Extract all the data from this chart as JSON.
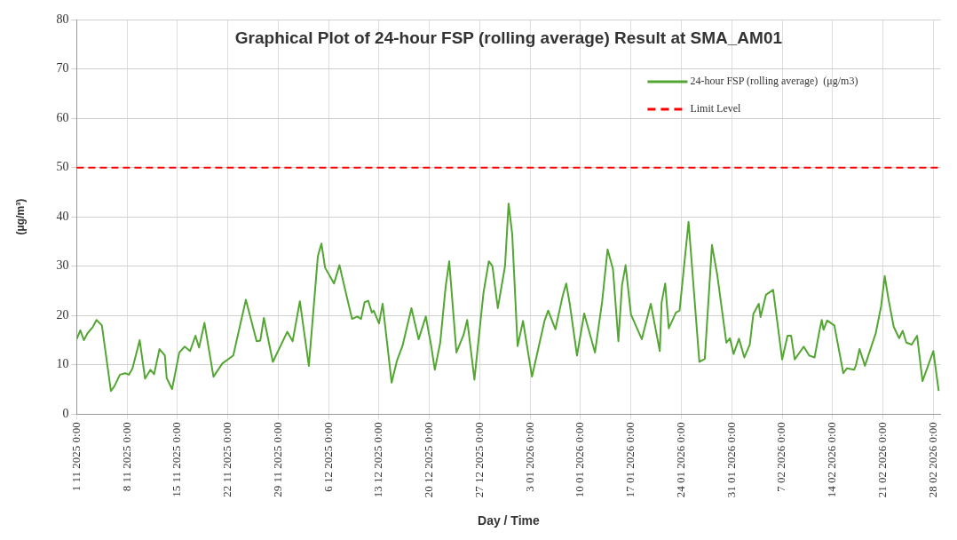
{
  "chart_data": {
    "type": "line",
    "title": "Graphical Plot of 24-hour FSP (rolling average) Result at SMA_AM01",
    "xlabel": "Day / Time",
    "ylabel": "(μg/m³)",
    "xlim": [
      "2025-11-01",
      "2026-03-01"
    ],
    "xticks": [
      {
        "value": "2025-11-01",
        "label": "1 11 2025 0:00"
      },
      {
        "value": "2025-11-08",
        "label": "8 11 2025 0:00"
      },
      {
        "value": "2025-11-15",
        "label": "15 11 2025 0:00"
      },
      {
        "value": "2025-11-22",
        "label": "22 11 2025 0:00"
      },
      {
        "value": "2025-11-29",
        "label": "29 11 2025 0:00"
      },
      {
        "value": "2025-12-06",
        "label": "6 12 2025 0:00"
      },
      {
        "value": "2025-12-13",
        "label": "13 12 2025 0:00"
      },
      {
        "value": "2025-12-20",
        "label": "20 12 2025 0:00"
      },
      {
        "value": "2025-12-27",
        "label": "27 12 2025 0:00"
      },
      {
        "value": "2026-01-03",
        "label": "3 01 2026 0:00"
      },
      {
        "value": "2026-01-10",
        "label": "10 01 2026 0:00"
      },
      {
        "value": "2026-01-17",
        "label": "17 01 2026 0:00"
      },
      {
        "value": "2026-01-24",
        "label": "24 01 2026 0:00"
      },
      {
        "value": "2026-01-31",
        "label": "31 01 2026 0:00"
      },
      {
        "value": "2026-02-07",
        "label": "7 02 2026 0:00"
      },
      {
        "value": "2026-02-14",
        "label": "14 02 2026 0:00"
      },
      {
        "value": "2026-02-21",
        "label": "21 02 2026 0:00"
      },
      {
        "value": "2026-02-28",
        "label": "28 02 2026 0:00"
      }
    ],
    "ylim": [
      0,
      80
    ],
    "yticks": [
      0,
      10,
      20,
      30,
      40,
      50,
      60,
      70,
      80
    ],
    "grid": true,
    "legend": "top right",
    "line_style": "solid",
    "marker": "none",
    "x": [
      "2025-11-01",
      "2025-11-01T12:00",
      "2025-11-02",
      "2025-11-02T12:00",
      "2025-11-03T06:00",
      "2025-11-03T18:00",
      "2025-11-04T12:00",
      "2025-11-05T18:00",
      "2025-11-06T06:00",
      "2025-11-07",
      "2025-11-07T18:00",
      "2025-11-08T06:00",
      "2025-11-08T18:00",
      "2025-11-09T18:00",
      "2025-11-10T12:00",
      "2025-11-11T06:00",
      "2025-11-11T18:00",
      "2025-11-12T12:00",
      "2025-11-13T06:00",
      "2025-11-13T12:00",
      "2025-11-14T06:00",
      "2025-11-15T06:00",
      "2025-11-16",
      "2025-11-16T18:00",
      "2025-11-17T12:00",
      "2025-11-18",
      "2025-11-18T18:00",
      "2025-11-20",
      "2025-11-21T06:00",
      "2025-11-22T18:00",
      "2025-11-24T12:00",
      "2025-11-26",
      "2025-11-26T12:00",
      "2025-11-27",
      "2025-11-28T06:00",
      "2025-11-30T06:00",
      "2025-12-01",
      "2025-12-02",
      "2025-12-03T06:00",
      "2025-12-04T12:00",
      "2025-12-05",
      "2025-12-05T12:00",
      "2025-12-06T18:00",
      "2025-12-07T12:00",
      "2025-12-08T06:00",
      "2025-12-09T06:00",
      "2025-12-10",
      "2025-12-10T12:00",
      "2025-12-11",
      "2025-12-11T12:00",
      "2025-12-12",
      "2025-12-12T06:00",
      "2025-12-13",
      "2025-12-13T12:00",
      "2025-12-14T18:00",
      "2025-12-15T12:00",
      "2025-12-16T06:00",
      "2025-12-17T12:00",
      "2025-12-18T12:00",
      "2025-12-19T12:00",
      "2025-12-20T06:00",
      "2025-12-20T18:00",
      "2025-12-21T12:00",
      "2025-12-22T06:00",
      "2025-12-22T18:00",
      "2025-12-23T18:00",
      "2025-12-24T18:00",
      "2025-12-25T06:00",
      "2025-12-26T06:00",
      "2025-12-27T12:00",
      "2025-12-28T06:00",
      "2025-12-28T18:00",
      "2025-12-29T12:00",
      "2025-12-30T12:00",
      "2025-12-31",
      "2025-12-31T12:00",
      "2026-01-01T06:00",
      "2026-01-02",
      "2026-01-03T06:00",
      "2026-01-04",
      "2026-01-05",
      "2026-01-05T12:00",
      "2026-01-06T12:00",
      "2026-01-07T12:00",
      "2026-01-08",
      "2026-01-08T12:00",
      "2026-01-09T12:00",
      "2026-01-10T12:00",
      "2026-01-12",
      "2026-01-13",
      "2026-01-13T18:00",
      "2026-01-14T12:00",
      "2026-01-15T06:00",
      "2026-01-15T18:00",
      "2026-01-16T06:00",
      "2026-01-17",
      "2026-01-18T12:00",
      "2026-01-19T18:00",
      "2026-01-21",
      "2026-01-21T06:00",
      "2026-01-21T18:00",
      "2026-01-22T06:00",
      "2026-01-23T06:00",
      "2026-01-23T18:00",
      "2026-01-25",
      "2026-01-26T12:00",
      "2026-01-27T06:00",
      "2026-01-28T06:00",
      "2026-01-29",
      "2026-01-30T06:00",
      "2026-01-30T18:00",
      "2026-01-31T06:00",
      "2026-02-01",
      "2026-02-01T18:00",
      "2026-02-02T12:00",
      "2026-02-03",
      "2026-02-03T18:00",
      "2026-02-04",
      "2026-02-04T18:00",
      "2026-02-05T18:00",
      "2026-02-07",
      "2026-02-07T18:00",
      "2026-02-08T06:00",
      "2026-02-08T18:00",
      "2026-02-10",
      "2026-02-10T18:00",
      "2026-02-11T12:00",
      "2026-02-12T06:00",
      "2026-02-12T12:00",
      "2026-02-12T18:00",
      "2026-02-13T06:00",
      "2026-02-14T06:00",
      "2026-02-15T12:00",
      "2026-02-16",
      "2026-02-17",
      "2026-02-17T06:00",
      "2026-02-17T18:00",
      "2026-02-18T12:00",
      "2026-02-20",
      "2026-02-20T18:00",
      "2026-02-21T06:00",
      "2026-02-21T18:00",
      "2026-02-22T12:00",
      "2026-02-23T06:00",
      "2026-02-23T18:00",
      "2026-02-24T06:00",
      "2026-02-25",
      "2026-02-25T18:00",
      "2026-02-26T12:00",
      "2026-02-28",
      "2026-02-28T18:00"
    ],
    "series": [
      {
        "name": "24-hour FSP (rolling average)  (μg/m3)",
        "color": "#53a632",
        "values": [
          15.2,
          17.0,
          15.0,
          16.4,
          17.7,
          19.1,
          18.0,
          4.7,
          5.7,
          8.0,
          8.3,
          8.0,
          9.3,
          15.0,
          7.2,
          9.0,
          8.1,
          13.2,
          11.9,
          7.3,
          5.1,
          12.5,
          13.7,
          12.8,
          15.9,
          13.5,
          18.5,
          7.6,
          10.3,
          11.9,
          23.2,
          14.8,
          14.9,
          19.5,
          10.6,
          16.7,
          14.8,
          22.9,
          9.8,
          32.0,
          34.6,
          29.7,
          26.5,
          30.2,
          25.5,
          19.3,
          19.8,
          19.3,
          22.7,
          23.0,
          20.6,
          21.0,
          18.4,
          22.4,
          6.4,
          10.9,
          13.8,
          21.5,
          15.2,
          19.8,
          13.8,
          9.0,
          14.5,
          25.8,
          31.0,
          12.5,
          16.1,
          19.1,
          7.0,
          24.5,
          31.0,
          30.0,
          21.5,
          30.0,
          42.7,
          36.5,
          13.8,
          18.9,
          7.6,
          12.5,
          19.0,
          21.0,
          17.2,
          23.9,
          26.5,
          22.3,
          11.9,
          20.4,
          12.5,
          22.9,
          33.4,
          29.4,
          14.8,
          26.1,
          30.2,
          20.2,
          15.2,
          22.4,
          12.8,
          22.6,
          26.5,
          17.4,
          20.6,
          21.0,
          39.0,
          10.6,
          11.2,
          34.3,
          28.1,
          14.5,
          15.4,
          12.2,
          15.3,
          11.5,
          14.1,
          20.3,
          22.4,
          19.7,
          24.2,
          25.2,
          11.1,
          15.9,
          15.9,
          11.1,
          13.7,
          11.9,
          11.5,
          17.4,
          19.1,
          17.1,
          19.0,
          18.0,
          8.3,
          9.3,
          9.0,
          9.9,
          13.2,
          9.8,
          16.4,
          21.9,
          28.0,
          23.5,
          17.7,
          15.4,
          16.9,
          14.5,
          14.1,
          15.9,
          6.7,
          12.8,
          4.7
        ]
      }
    ],
    "ref_lines": [
      {
        "axis": "y",
        "value": 50,
        "label": "Limit Level",
        "color": "#ff0000",
        "line_style": "dashed"
      }
    ]
  }
}
